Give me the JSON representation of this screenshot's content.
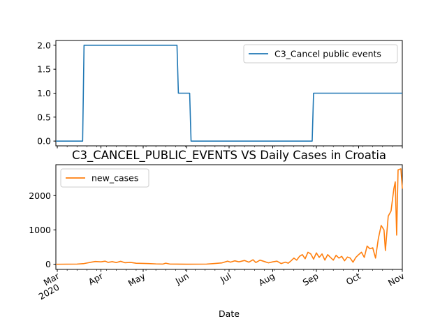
{
  "chart_data": [
    {
      "type": "line",
      "title": "",
      "xlabel": "",
      "ylabel": "",
      "x_range": [
        "2020-02-29",
        "2020-11-01"
      ],
      "ylim": [
        -0.1,
        2.1
      ],
      "yticks": [
        "0.0",
        "0.5",
        "1.0",
        "1.5",
        "2.0"
      ],
      "legend_position": "upper right",
      "series": [
        {
          "name": "C3_Cancel public events",
          "color": "#1f77b4",
          "points": [
            [
              "2020-02-29",
              0
            ],
            [
              "2020-03-19",
              0
            ],
            [
              "2020-03-20",
              2
            ],
            [
              "2020-05-25",
              2
            ],
            [
              "2020-05-26",
              1
            ],
            [
              "2020-06-03",
              1
            ],
            [
              "2020-06-04",
              0
            ],
            [
              "2020-08-29",
              0
            ],
            [
              "2020-08-30",
              1
            ],
            [
              "2020-11-01",
              1
            ]
          ]
        }
      ]
    },
    {
      "type": "line",
      "title": "C3_CANCEL_PUBLIC_EVENTS VS Daily Cases in Croatia",
      "xlabel": "Date",
      "ylabel": "",
      "x_range": [
        "2020-02-29",
        "2020-11-01"
      ],
      "ylim": [
        -150,
        2900
      ],
      "yticks": [
        "0",
        "1000",
        "2000"
      ],
      "xticks": [
        {
          "date": "2020-03-01",
          "label": "Mar",
          "sublabel": "2020"
        },
        {
          "date": "2020-04-01",
          "label": "Apr"
        },
        {
          "date": "2020-05-01",
          "label": "May"
        },
        {
          "date": "2020-06-01",
          "label": "Jun"
        },
        {
          "date": "2020-07-01",
          "label": "Jul"
        },
        {
          "date": "2020-08-01",
          "label": "Aug"
        },
        {
          "date": "2020-09-01",
          "label": "Sep"
        },
        {
          "date": "2020-10-01",
          "label": "Oct"
        },
        {
          "date": "2020-11-01",
          "label": "Nov"
        }
      ],
      "legend_position": "upper left",
      "series": [
        {
          "name": "new_cases",
          "color": "#ff7f0e",
          "points": [
            [
              "2020-02-29",
              0
            ],
            [
              "2020-03-15",
              5
            ],
            [
              "2020-03-20",
              20
            ],
            [
              "2020-03-25",
              60
            ],
            [
              "2020-03-28",
              80
            ],
            [
              "2020-04-01",
              70
            ],
            [
              "2020-04-04",
              90
            ],
            [
              "2020-04-06",
              55
            ],
            [
              "2020-04-09",
              75
            ],
            [
              "2020-04-12",
              50
            ],
            [
              "2020-04-15",
              85
            ],
            [
              "2020-04-18",
              45
            ],
            [
              "2020-04-22",
              55
            ],
            [
              "2020-04-26",
              30
            ],
            [
              "2020-05-01",
              25
            ],
            [
              "2020-05-05",
              20
            ],
            [
              "2020-05-10",
              10
            ],
            [
              "2020-05-15",
              5
            ],
            [
              "2020-05-17",
              30
            ],
            [
              "2020-05-20",
              5
            ],
            [
              "2020-06-01",
              2
            ],
            [
              "2020-06-15",
              5
            ],
            [
              "2020-06-20",
              20
            ],
            [
              "2020-06-26",
              40
            ],
            [
              "2020-06-30",
              90
            ],
            [
              "2020-07-02",
              60
            ],
            [
              "2020-07-05",
              100
            ],
            [
              "2020-07-08",
              70
            ],
            [
              "2020-07-12",
              110
            ],
            [
              "2020-07-15",
              60
            ],
            [
              "2020-07-18",
              130
            ],
            [
              "2020-07-20",
              50
            ],
            [
              "2020-07-23",
              120
            ],
            [
              "2020-07-26",
              80
            ],
            [
              "2020-07-29",
              40
            ],
            [
              "2020-08-01",
              70
            ],
            [
              "2020-08-04",
              90
            ],
            [
              "2020-08-07",
              20
            ],
            [
              "2020-08-10",
              60
            ],
            [
              "2020-08-12",
              30
            ],
            [
              "2020-08-14",
              100
            ],
            [
              "2020-08-16",
              180
            ],
            [
              "2020-08-18",
              120
            ],
            [
              "2020-08-20",
              230
            ],
            [
              "2020-08-22",
              280
            ],
            [
              "2020-08-24",
              160
            ],
            [
              "2020-08-26",
              350
            ],
            [
              "2020-08-28",
              300
            ],
            [
              "2020-08-30",
              150
            ],
            [
              "2020-09-01",
              330
            ],
            [
              "2020-09-03",
              200
            ],
            [
              "2020-09-05",
              300
            ],
            [
              "2020-09-07",
              120
            ],
            [
              "2020-09-09",
              280
            ],
            [
              "2020-09-11",
              200
            ],
            [
              "2020-09-13",
              120
            ],
            [
              "2020-09-15",
              260
            ],
            [
              "2020-09-17",
              180
            ],
            [
              "2020-09-19",
              230
            ],
            [
              "2020-09-21",
              100
            ],
            [
              "2020-09-23",
              210
            ],
            [
              "2020-09-25",
              180
            ],
            [
              "2020-09-27",
              60
            ],
            [
              "2020-09-29",
              200
            ],
            [
              "2020-10-01",
              280
            ],
            [
              "2020-10-03",
              350
            ],
            [
              "2020-10-05",
              200
            ],
            [
              "2020-10-07",
              530
            ],
            [
              "2020-10-09",
              450
            ],
            [
              "2020-10-11",
              480
            ],
            [
              "2020-10-13",
              180
            ],
            [
              "2020-10-15",
              750
            ],
            [
              "2020-10-17",
              1130
            ],
            [
              "2020-10-19",
              1000
            ],
            [
              "2020-10-20",
              400
            ],
            [
              "2020-10-22",
              1400
            ],
            [
              "2020-10-24",
              1550
            ],
            [
              "2020-10-26",
              2200
            ],
            [
              "2020-10-27",
              2400
            ],
            [
              "2020-10-28",
              850
            ],
            [
              "2020-10-29",
              2750
            ],
            [
              "2020-10-31",
              2780
            ],
            [
              "2020-11-01",
              2200
            ]
          ]
        }
      ]
    }
  ]
}
